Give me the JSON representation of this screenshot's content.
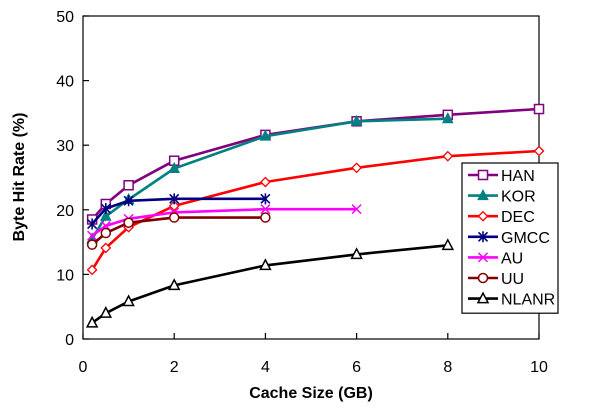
{
  "chart_data": {
    "type": "line",
    "title": "",
    "xlabel": "Cache Size (GB)",
    "ylabel": "Byte Hit Rate (%)",
    "xlim": [
      0,
      10
    ],
    "ylim": [
      0,
      50
    ],
    "xticks": [
      0,
      2,
      4,
      6,
      8,
      10
    ],
    "yticks": [
      0,
      10,
      20,
      30,
      40,
      50
    ],
    "xtick_labels": [
      "0",
      "2",
      "4",
      "6",
      "8",
      "10"
    ],
    "ytick_labels": [
      "0",
      "10",
      "20",
      "30",
      "40",
      "50"
    ],
    "grid": false,
    "legend_position": "right",
    "series": [
      {
        "name": "HAN",
        "color": "#800080",
        "marker": "square-open",
        "x": [
          0.2,
          0.5,
          1,
          2,
          4,
          6,
          8,
          10
        ],
        "y": [
          18.5,
          20.9,
          23.8,
          27.6,
          31.6,
          33.7,
          34.7,
          35.6
        ]
      },
      {
        "name": "KOR",
        "color": "#008080",
        "marker": "triangle-filled",
        "x": [
          0.2,
          0.5,
          1,
          2,
          4,
          6,
          8
        ],
        "y": [
          15.5,
          19.0,
          21.6,
          26.4,
          31.4,
          33.7,
          34.1
        ]
      },
      {
        "name": "DEC",
        "color": "#ff0000",
        "marker": "diamond-open",
        "x": [
          0.2,
          0.5,
          1,
          2,
          4,
          6,
          8,
          10
        ],
        "y": [
          10.7,
          14.1,
          17.3,
          20.6,
          24.3,
          26.5,
          28.3,
          29.1
        ]
      },
      {
        "name": "GMCC",
        "color": "#000080",
        "marker": "asterisk",
        "x": [
          0.2,
          0.5,
          1,
          2,
          4
        ],
        "y": [
          17.8,
          20.2,
          21.4,
          21.7,
          21.7
        ]
      },
      {
        "name": "AU",
        "color": "#ff00ff",
        "marker": "x",
        "x": [
          0.2,
          0.5,
          1,
          2,
          4,
          6
        ],
        "y": [
          16.0,
          17.5,
          18.6,
          19.6,
          20.1,
          20.1
        ]
      },
      {
        "name": "UU",
        "color": "#800000",
        "marker": "circle-open",
        "x": [
          0.2,
          0.5,
          1,
          2,
          4
        ],
        "y": [
          14.6,
          16.4,
          18.0,
          18.8,
          18.8
        ]
      },
      {
        "name": "NLANR",
        "color": "#000000",
        "marker": "triangle-open",
        "x": [
          0.2,
          0.5,
          1,
          2,
          4,
          6,
          8
        ],
        "y": [
          2.5,
          4.0,
          5.8,
          8.3,
          11.4,
          13.1,
          14.5
        ]
      }
    ]
  }
}
